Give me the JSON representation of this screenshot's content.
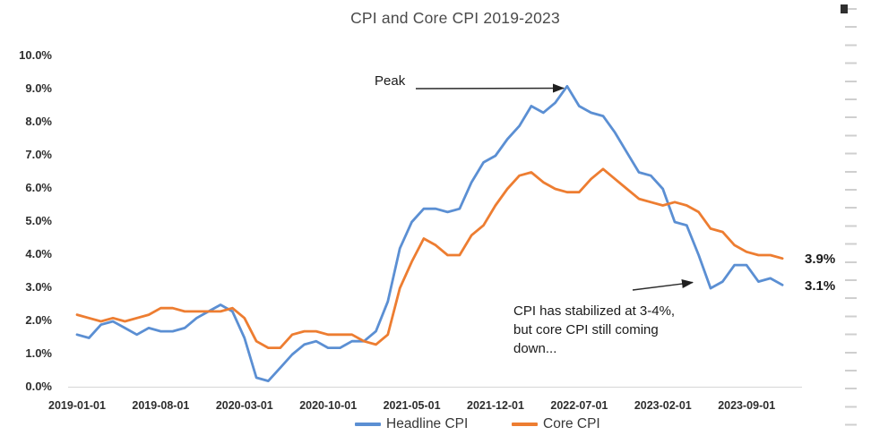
{
  "chart": {
    "peak_label": "Peak",
    "stabilized_lines": [
      "CPI has stabilized at 3-4%,",
      "but core CPI still coming",
      "down..."
    ],
    "end_label_core": "3.9%",
    "end_label_headline": "3.1%"
  },
  "chart_data": {
    "type": "line",
    "title": "CPI and Core CPI 2019-2023",
    "xlabel": "",
    "ylabel": "",
    "ylim": [
      0,
      10
    ],
    "grid": "none",
    "legend_position": "bottom",
    "y_tick_labels": [
      "10.0%",
      "9.0%",
      "8.0%",
      "7.0%",
      "6.0%",
      "5.0%",
      "4.0%",
      "3.0%",
      "2.0%",
      "1.0%",
      "0.0%"
    ],
    "x_tick_labels": [
      "2019-01-01",
      "2019-08-01",
      "2020-03-01",
      "2020-10-01",
      "2021-05-01",
      "2021-12-01",
      "2022-07-01",
      "2023-02-01",
      "2023-09-01"
    ],
    "x_months": [
      "2019-01",
      "2019-02",
      "2019-03",
      "2019-04",
      "2019-05",
      "2019-06",
      "2019-07",
      "2019-08",
      "2019-09",
      "2019-10",
      "2019-11",
      "2019-12",
      "2020-01",
      "2020-02",
      "2020-03",
      "2020-04",
      "2020-05",
      "2020-06",
      "2020-07",
      "2020-08",
      "2020-09",
      "2020-10",
      "2020-11",
      "2020-12",
      "2021-01",
      "2021-02",
      "2021-03",
      "2021-04",
      "2021-05",
      "2021-06",
      "2021-07",
      "2021-08",
      "2021-09",
      "2021-10",
      "2021-11",
      "2021-12",
      "2022-01",
      "2022-02",
      "2022-03",
      "2022-04",
      "2022-05",
      "2022-06",
      "2022-07",
      "2022-08",
      "2022-09",
      "2022-10",
      "2022-11",
      "2022-12",
      "2023-01",
      "2023-02",
      "2023-03",
      "2023-04",
      "2023-05",
      "2023-06",
      "2023-07",
      "2023-08",
      "2023-09",
      "2023-10",
      "2023-11",
      "2023-12"
    ],
    "series": [
      {
        "name": "Headline CPI",
        "color": "#5b8fd3",
        "values": [
          1.6,
          1.5,
          1.9,
          2.0,
          1.8,
          1.6,
          1.8,
          1.7,
          1.7,
          1.8,
          2.1,
          2.3,
          2.5,
          2.3,
          1.5,
          0.3,
          0.2,
          0.6,
          1.0,
          1.3,
          1.4,
          1.2,
          1.2,
          1.4,
          1.4,
          1.7,
          2.6,
          4.2,
          5.0,
          5.4,
          5.4,
          5.3,
          5.4,
          6.2,
          6.8,
          7.0,
          7.5,
          7.9,
          8.5,
          8.3,
          8.6,
          9.1,
          8.5,
          8.3,
          8.2,
          7.7,
          7.1,
          6.5,
          6.4,
          6.0,
          5.0,
          4.9,
          4.0,
          3.0,
          3.2,
          3.7,
          3.7,
          3.2,
          3.3,
          3.1
        ]
      },
      {
        "name": "Core CPI",
        "color": "#ed7d31",
        "values": [
          2.2,
          2.1,
          2.0,
          2.1,
          2.0,
          2.1,
          2.2,
          2.4,
          2.4,
          2.3,
          2.3,
          2.3,
          2.3,
          2.4,
          2.1,
          1.4,
          1.2,
          1.2,
          1.6,
          1.7,
          1.7,
          1.6,
          1.6,
          1.6,
          1.4,
          1.3,
          1.6,
          3.0,
          3.8,
          4.5,
          4.3,
          4.0,
          4.0,
          4.6,
          4.9,
          5.5,
          6.0,
          6.4,
          6.5,
          6.2,
          6.0,
          5.9,
          5.9,
          6.3,
          6.6,
          6.3,
          6.0,
          5.7,
          5.6,
          5.5,
          5.6,
          5.5,
          5.3,
          4.8,
          4.7,
          4.3,
          4.1,
          4.0,
          4.0,
          3.9
        ]
      }
    ],
    "annotations": [
      {
        "text": "Peak",
        "arrow_points_to": "Headline CPI peak 9.1% at 2022-06"
      },
      {
        "text": "CPI has stabilized at 3-4%, but core CPI still coming down...",
        "arrow_points_to": "Headline CPI dip 3.0% at 2023-06"
      }
    ],
    "end_data_labels": [
      {
        "series": "Core CPI",
        "label": "3.9%"
      },
      {
        "series": "Headline CPI",
        "label": "3.1%"
      }
    ]
  }
}
